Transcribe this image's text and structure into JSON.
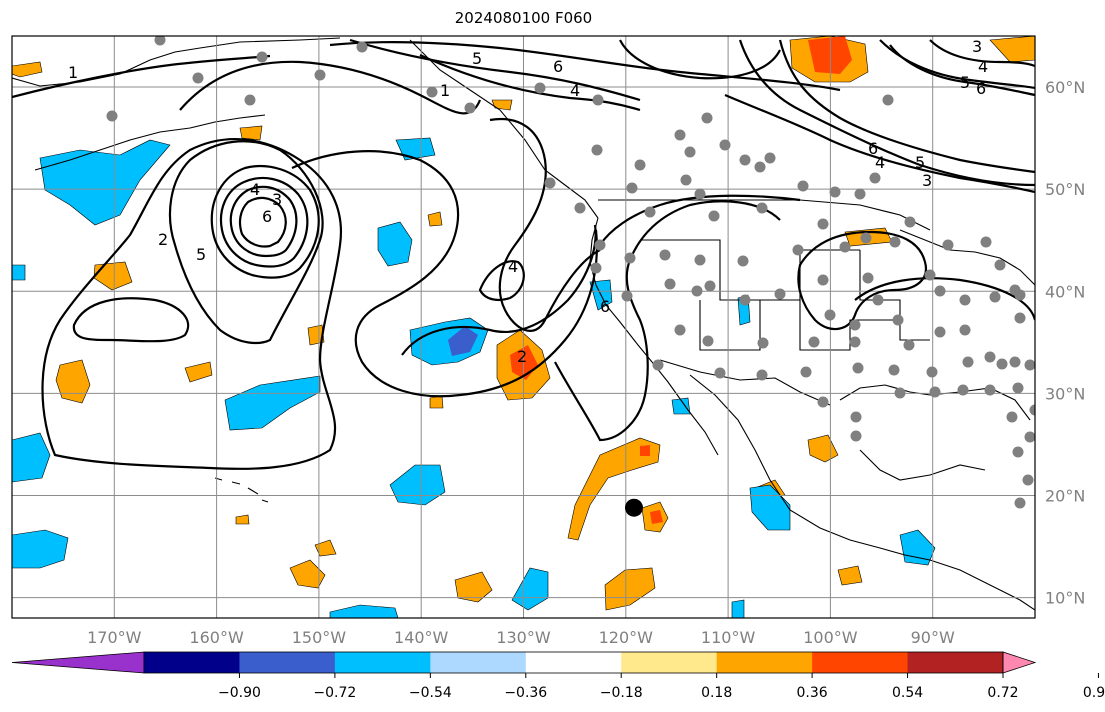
{
  "title": "2024080100 F060",
  "map": {
    "projection": "PlateCarree",
    "lon_range": [
      -180,
      -80
    ],
    "lat_range": [
      8,
      65
    ],
    "gridlines": true,
    "grid_color": "#8c8c8c",
    "land_outline_color": "#000000",
    "lon_ticks": [
      {
        "lon": -170,
        "label": "170°W"
      },
      {
        "lon": -160,
        "label": "160°W"
      },
      {
        "lon": -150,
        "label": "150°W"
      },
      {
        "lon": -140,
        "label": "140°W"
      },
      {
        "lon": -130,
        "label": "130°W"
      },
      {
        "lon": -120,
        "label": "120°W"
      },
      {
        "lon": -110,
        "label": "110°W"
      },
      {
        "lon": -100,
        "label": "100°W"
      },
      {
        "lon": -90,
        "label": "90°W"
      }
    ],
    "lat_ticks": [
      {
        "lat": 60,
        "label": "60°N"
      },
      {
        "lat": 50,
        "label": "50°N"
      },
      {
        "lat": 40,
        "label": "40°N"
      },
      {
        "lat": 30,
        "label": "30°N"
      },
      {
        "lat": 20,
        "label": "20°N"
      },
      {
        "lat": 10,
        "label": "10°N"
      }
    ],
    "contour_labels": [
      "1",
      "2",
      "3",
      "4",
      "5",
      "6"
    ],
    "station_marker_color": "#808080",
    "storm_marker": {
      "lon": -119.2,
      "lat": 18.8,
      "color": "#000000"
    }
  },
  "colorbar": {
    "boundaries": [
      "−0.90",
      "−0.72",
      "−0.54",
      "−0.36",
      "−0.18",
      "0.18",
      "0.36",
      "0.54",
      "0.72",
      "0.90"
    ],
    "colors": [
      "#9932cc",
      "#00008b",
      "#3a5fcd",
      "#00bfff",
      "#add8ff",
      "#ffffff",
      "#ffe98c",
      "#ffa500",
      "#ff4500",
      "#b22222",
      "#ff88b0"
    ],
    "extend": "both"
  }
}
